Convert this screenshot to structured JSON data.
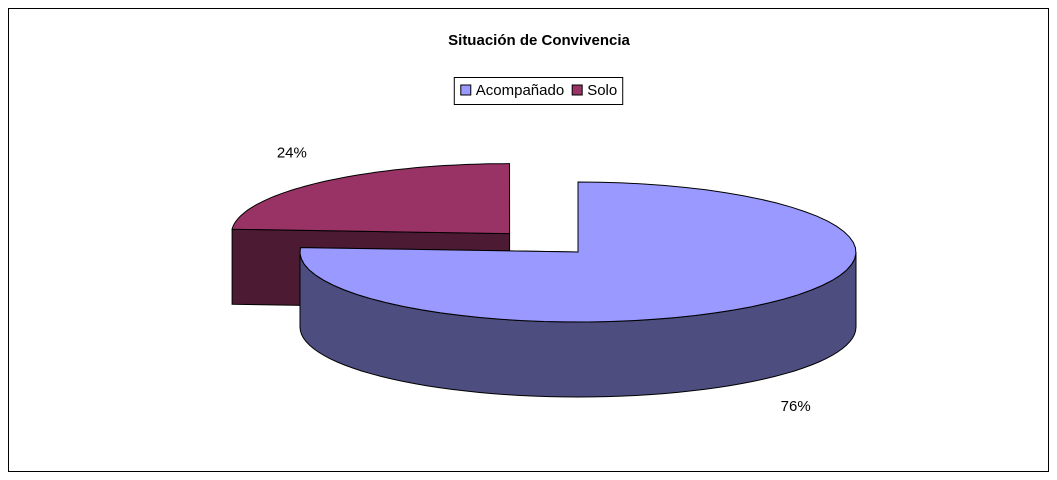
{
  "chart_data": {
    "type": "pie",
    "title": "Situación de Convivencia",
    "categories": [
      "Acompañado",
      "Solo"
    ],
    "values": [
      76,
      24
    ],
    "value_labels": [
      "76%",
      "24%"
    ],
    "colors": [
      "#9999ff",
      "#993366"
    ],
    "legend": "top"
  }
}
